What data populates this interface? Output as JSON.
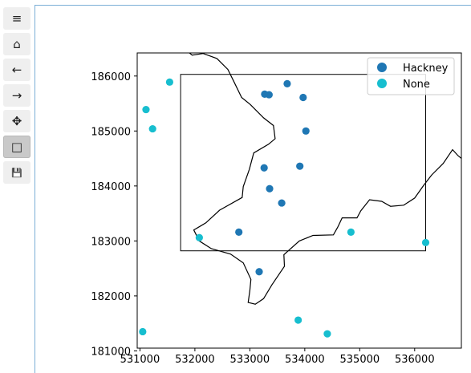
{
  "toolbar": {
    "buttons": [
      {
        "name": "menu",
        "glyph": "≡"
      },
      {
        "name": "home",
        "glyph": "⌂"
      },
      {
        "name": "back",
        "glyph": "←"
      },
      {
        "name": "forward",
        "glyph": "→"
      },
      {
        "name": "pan",
        "glyph": "✥"
      },
      {
        "name": "zoom-rect",
        "glyph": "□",
        "active": true
      },
      {
        "name": "save",
        "glyph": "💾"
      }
    ]
  },
  "chart_data": {
    "type": "scatter",
    "xlim": [
      530950,
      536850
    ],
    "ylim": [
      181050,
      186420
    ],
    "xticks": [
      531000,
      532000,
      533000,
      534000,
      535000,
      536000
    ],
    "yticks": [
      181000,
      182000,
      183000,
      184000,
      185000,
      186000
    ],
    "xtick_labels": [
      "531000",
      "532000",
      "533000",
      "534000",
      "535000",
      "536000"
    ],
    "ytick_labels": [
      "181000",
      "182000",
      "183000",
      "184000",
      "185000",
      "186000"
    ],
    "legend_position": "top-right",
    "series": [
      {
        "name": "Hackney",
        "color": "#1f77b4",
        "points": [
          [
            533270,
            185670
          ],
          [
            533350,
            185660
          ],
          [
            533680,
            185860
          ],
          [
            533970,
            185610
          ],
          [
            534020,
            185000
          ],
          [
            533260,
            184330
          ],
          [
            533910,
            184360
          ],
          [
            533360,
            183950
          ],
          [
            533580,
            183690
          ],
          [
            532800,
            183160
          ],
          [
            533170,
            182440
          ]
        ]
      },
      {
        "name": "None",
        "color": "#17becf",
        "points": [
          [
            531540,
            185890
          ],
          [
            531110,
            185390
          ],
          [
            531230,
            185040
          ],
          [
            532080,
            183060
          ],
          [
            534840,
            183160
          ],
          [
            536200,
            182970
          ],
          [
            531050,
            181350
          ],
          [
            533880,
            181560
          ],
          [
            534410,
            181310
          ]
        ]
      }
    ],
    "selection_box": {
      "x": [
        531740,
        536200
      ],
      "y": [
        182820,
        186030
      ]
    },
    "boundary_path": [
      [
        531900,
        186420
      ],
      [
        531950,
        186380
      ],
      [
        532150,
        186410
      ],
      [
        532400,
        186320
      ],
      [
        532600,
        186120
      ],
      [
        532700,
        185920
      ],
      [
        532850,
        185610
      ],
      [
        533010,
        185480
      ],
      [
        533250,
        185240
      ],
      [
        533430,
        185100
      ],
      [
        533460,
        184860
      ],
      [
        533340,
        184760
      ],
      [
        533070,
        184600
      ],
      [
        532990,
        184300
      ],
      [
        532880,
        183990
      ],
      [
        532860,
        183790
      ],
      [
        532450,
        183560
      ],
      [
        532200,
        183330
      ],
      [
        531980,
        183200
      ],
      [
        532080,
        183000
      ],
      [
        532300,
        182860
      ],
      [
        532650,
        182760
      ],
      [
        532880,
        182600
      ],
      [
        533020,
        182300
      ],
      [
        533000,
        182100
      ],
      [
        532970,
        181880
      ],
      [
        533100,
        181850
      ],
      [
        533250,
        181950
      ],
      [
        533400,
        182200
      ],
      [
        533630,
        182540
      ],
      [
        533620,
        182750
      ],
      [
        533900,
        183000
      ],
      [
        534150,
        183100
      ],
      [
        534520,
        183110
      ],
      [
        534600,
        183250
      ],
      [
        534680,
        183420
      ],
      [
        534950,
        183420
      ],
      [
        535020,
        183550
      ],
      [
        535180,
        183750
      ],
      [
        535400,
        183720
      ],
      [
        535560,
        183630
      ],
      [
        535800,
        183650
      ],
      [
        536000,
        183780
      ],
      [
        536170,
        184020
      ],
      [
        536310,
        184200
      ],
      [
        536520,
        184410
      ],
      [
        536690,
        184660
      ],
      [
        536790,
        184550
      ],
      [
        536900,
        184460
      ],
      [
        536990,
        184440
      ]
    ]
  }
}
